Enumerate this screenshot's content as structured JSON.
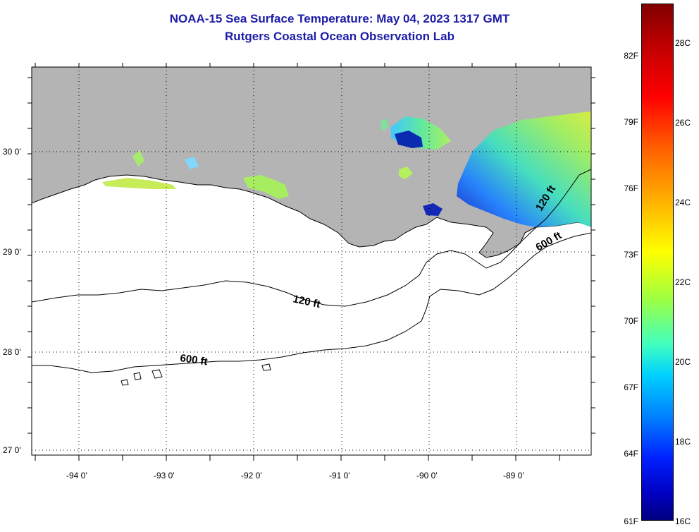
{
  "title": {
    "line1": "NOAA-15 Sea Surface Temperature:  May 04, 2023 1317 GMT",
    "line2": "Rutgers Coastal Ocean Observation Lab"
  },
  "map": {
    "lat_labels": [
      "30 0'",
      "29 0'",
      "28 0'",
      "27 0'"
    ],
    "lon_labels": [
      "-94 0'",
      "-93 0'",
      "-92 0'",
      "-91 0'",
      "-90 0'",
      "-89 0'"
    ],
    "contour_labels": [
      "120 ft",
      "600 ft",
      "120 ft",
      "600 ft"
    ],
    "lat_range": [
      26.9,
      30.85
    ],
    "lon_range": [
      -94.5,
      -88.3
    ],
    "colors": {
      "land": "#b4b4b4",
      "ocean": "#ffffff",
      "coast": "#000000"
    }
  },
  "colorbar": {
    "f_labels": [
      "82F",
      "79F",
      "76F",
      "73F",
      "70F",
      "67F",
      "64F",
      "61F"
    ],
    "c_labels": [
      "28C",
      "26C",
      "24C",
      "22C",
      "20C",
      "18C",
      "16C"
    ]
  }
}
